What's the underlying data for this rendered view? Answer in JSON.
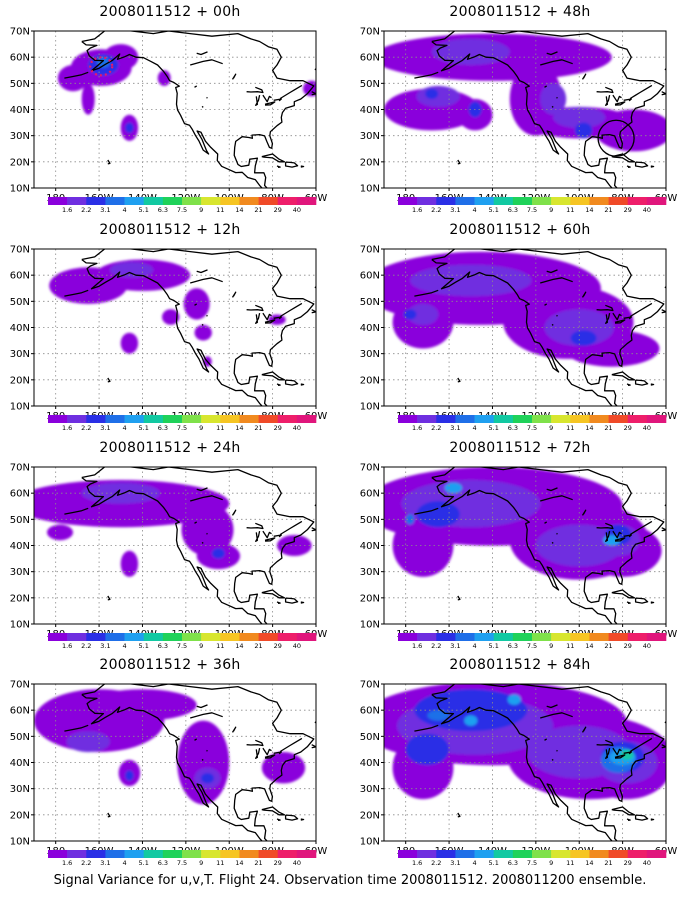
{
  "panels": [
    {
      "title": "2008011512 + 00h",
      "blobs": [
        {
          "lon": -159,
          "lat": 56,
          "rx": 14,
          "ry": 7,
          "l": 1
        },
        {
          "lon": -172,
          "lat": 52,
          "rx": 7,
          "ry": 5,
          "l": 1
        },
        {
          "lon": -150,
          "lat": 60,
          "rx": 8,
          "ry": 5,
          "l": 1
        },
        {
          "lon": -158,
          "lat": 57,
          "rx": 7,
          "ry": 4,
          "l": 3
        },
        {
          "lon": -158,
          "lat": 58,
          "rx": 3,
          "ry": 2,
          "l": 4
        },
        {
          "lon": -165,
          "lat": 44,
          "rx": 3,
          "ry": 6,
          "l": 1
        },
        {
          "lon": -146,
          "lat": 33,
          "rx": 4,
          "ry": 5,
          "l": 1
        },
        {
          "lon": -146,
          "lat": 33,
          "rx": 2,
          "ry": 2,
          "l": 3
        },
        {
          "lon": -130,
          "lat": 52,
          "rx": 3,
          "ry": 3,
          "l": 1
        },
        {
          "lon": -62,
          "lat": 48,
          "rx": 4,
          "ry": 3,
          "l": 1
        }
      ]
    },
    {
      "title": "2008011512 + 48h",
      "blobs": [
        {
          "lon": -140,
          "lat": 60,
          "rx": 55,
          "ry": 9,
          "l": 1
        },
        {
          "lon": -168,
          "lat": 40,
          "rx": 22,
          "ry": 8,
          "l": 1
        },
        {
          "lon": -148,
          "lat": 38,
          "rx": 8,
          "ry": 6,
          "l": 1
        },
        {
          "lon": -120,
          "lat": 44,
          "rx": 12,
          "ry": 14,
          "l": 1
        },
        {
          "lon": -100,
          "lat": 35,
          "rx": 25,
          "ry": 6,
          "l": 1
        },
        {
          "lon": -75,
          "lat": 32,
          "rx": 18,
          "ry": 8,
          "l": 1
        },
        {
          "lon": -150,
          "lat": 62,
          "rx": 18,
          "ry": 5,
          "l": 2
        },
        {
          "lon": -165,
          "lat": 45,
          "rx": 10,
          "ry": 4,
          "l": 2
        },
        {
          "lon": -112,
          "lat": 44,
          "rx": 6,
          "ry": 6,
          "l": 2
        },
        {
          "lon": -100,
          "lat": 37,
          "rx": 12,
          "ry": 4,
          "l": 2
        },
        {
          "lon": -148,
          "lat": 40,
          "rx": 3,
          "ry": 3,
          "l": 3
        },
        {
          "lon": -98,
          "lat": 32,
          "rx": 4,
          "ry": 3,
          "l": 3
        },
        {
          "lon": -168,
          "lat": 46,
          "rx": 3,
          "ry": 2,
          "l": 3
        }
      ]
    },
    {
      "title": "2008011512 + 12h",
      "blobs": [
        {
          "lon": -165,
          "lat": 56,
          "rx": 18,
          "ry": 7,
          "l": 1
        },
        {
          "lon": -140,
          "lat": 60,
          "rx": 22,
          "ry": 6,
          "l": 1
        },
        {
          "lon": -115,
          "lat": 49,
          "rx": 6,
          "ry": 6,
          "l": 1
        },
        {
          "lon": -127,
          "lat": 44,
          "rx": 4,
          "ry": 3,
          "l": 1
        },
        {
          "lon": -146,
          "lat": 34,
          "rx": 4,
          "ry": 4,
          "l": 1
        },
        {
          "lon": -110,
          "lat": 27,
          "rx": 2,
          "ry": 2,
          "l": 1
        },
        {
          "lon": -145,
          "lat": 62,
          "rx": 10,
          "ry": 3,
          "l": 2
        },
        {
          "lon": -78,
          "lat": 43,
          "rx": 4,
          "ry": 2,
          "l": 1
        },
        {
          "lon": -112,
          "lat": 38,
          "rx": 4,
          "ry": 3,
          "l": 1
        }
      ]
    },
    {
      "title": "2008011512 + 60h",
      "blobs": [
        {
          "lon": -145,
          "lat": 55,
          "rx": 55,
          "ry": 14,
          "l": 1
        },
        {
          "lon": -172,
          "lat": 42,
          "rx": 14,
          "ry": 10,
          "l": 1
        },
        {
          "lon": -105,
          "lat": 42,
          "rx": 30,
          "ry": 14,
          "l": 1
        },
        {
          "lon": -85,
          "lat": 32,
          "rx": 22,
          "ry": 7,
          "l": 1
        },
        {
          "lon": -150,
          "lat": 58,
          "rx": 28,
          "ry": 6,
          "l": 2
        },
        {
          "lon": -172,
          "lat": 45,
          "rx": 7,
          "ry": 4,
          "l": 2
        },
        {
          "lon": -100,
          "lat": 40,
          "rx": 16,
          "ry": 7,
          "l": 2
        },
        {
          "lon": -98,
          "lat": 36,
          "rx": 6,
          "ry": 3,
          "l": 3
        },
        {
          "lon": -178,
          "lat": 45,
          "rx": 3,
          "ry": 2,
          "l": 3
        }
      ]
    },
    {
      "title": "2008011512 + 24h",
      "blobs": [
        {
          "lon": -150,
          "lat": 56,
          "rx": 50,
          "ry": 9,
          "l": 1
        },
        {
          "lon": -110,
          "lat": 46,
          "rx": 12,
          "ry": 10,
          "l": 1
        },
        {
          "lon": -146,
          "lat": 33,
          "rx": 4,
          "ry": 5,
          "l": 1
        },
        {
          "lon": -105,
          "lat": 36,
          "rx": 10,
          "ry": 5,
          "l": 1
        },
        {
          "lon": -70,
          "lat": 40,
          "rx": 8,
          "ry": 4,
          "l": 1
        },
        {
          "lon": -150,
          "lat": 60,
          "rx": 18,
          "ry": 4,
          "l": 2
        },
        {
          "lon": -105,
          "lat": 37,
          "rx": 3,
          "ry": 2,
          "l": 3
        },
        {
          "lon": -178,
          "lat": 45,
          "rx": 6,
          "ry": 3,
          "l": 1
        }
      ]
    },
    {
      "title": "2008011512 + 72h",
      "blobs": [
        {
          "lon": -140,
          "lat": 55,
          "rx": 60,
          "ry": 15,
          "l": 1
        },
        {
          "lon": -172,
          "lat": 40,
          "rx": 14,
          "ry": 12,
          "l": 1
        },
        {
          "lon": -100,
          "lat": 42,
          "rx": 32,
          "ry": 15,
          "l": 1
        },
        {
          "lon": -80,
          "lat": 38,
          "rx": 18,
          "ry": 10,
          "l": 1
        },
        {
          "lon": -150,
          "lat": 56,
          "rx": 32,
          "ry": 9,
          "l": 2
        },
        {
          "lon": -100,
          "lat": 40,
          "rx": 20,
          "ry": 8,
          "l": 2
        },
        {
          "lon": -82,
          "lat": 42,
          "rx": 10,
          "ry": 6,
          "l": 2
        },
        {
          "lon": -165,
          "lat": 52,
          "rx": 10,
          "ry": 5,
          "l": 3
        },
        {
          "lon": -82,
          "lat": 44,
          "rx": 6,
          "ry": 4,
          "l": 3
        },
        {
          "lon": -85,
          "lat": 42,
          "rx": 4,
          "ry": 2,
          "l": 5
        },
        {
          "lon": -158,
          "lat": 62,
          "rx": 4,
          "ry": 2,
          "l": 5
        },
        {
          "lon": -178,
          "lat": 50,
          "rx": 2,
          "ry": 2,
          "l": 4
        }
      ]
    },
    {
      "title": "2008011512 + 36h",
      "blobs": [
        {
          "lon": -160,
          "lat": 56,
          "rx": 30,
          "ry": 12,
          "l": 1
        },
        {
          "lon": -140,
          "lat": 62,
          "rx": 25,
          "ry": 6,
          "l": 1
        },
        {
          "lon": -112,
          "lat": 40,
          "rx": 12,
          "ry": 16,
          "l": 1
        },
        {
          "lon": -146,
          "lat": 36,
          "rx": 5,
          "ry": 5,
          "l": 1
        },
        {
          "lon": -75,
          "lat": 38,
          "rx": 10,
          "ry": 6,
          "l": 1
        },
        {
          "lon": -165,
          "lat": 48,
          "rx": 10,
          "ry": 4,
          "l": 2
        },
        {
          "lon": -110,
          "lat": 34,
          "rx": 6,
          "ry": 4,
          "l": 2
        },
        {
          "lon": -110,
          "lat": 34,
          "rx": 3,
          "ry": 2,
          "l": 3
        },
        {
          "lon": -146,
          "lat": 35,
          "rx": 2,
          "ry": 2,
          "l": 3
        }
      ]
    },
    {
      "title": "2008011512 + 84h",
      "blobs": [
        {
          "lon": -140,
          "lat": 55,
          "rx": 62,
          "ry": 16,
          "l": 1
        },
        {
          "lon": -172,
          "lat": 38,
          "rx": 14,
          "ry": 12,
          "l": 1
        },
        {
          "lon": -95,
          "lat": 42,
          "rx": 38,
          "ry": 16,
          "l": 1
        },
        {
          "lon": -78,
          "lat": 38,
          "rx": 20,
          "ry": 12,
          "l": 1
        },
        {
          "lon": -148,
          "lat": 54,
          "rx": 36,
          "ry": 11,
          "l": 2
        },
        {
          "lon": -100,
          "lat": 44,
          "rx": 24,
          "ry": 10,
          "l": 2
        },
        {
          "lon": -78,
          "lat": 40,
          "rx": 14,
          "ry": 8,
          "l": 2
        },
        {
          "lon": -150,
          "lat": 60,
          "rx": 26,
          "ry": 8,
          "l": 3
        },
        {
          "lon": -170,
          "lat": 45,
          "rx": 10,
          "ry": 6,
          "l": 3
        },
        {
          "lon": -80,
          "lat": 42,
          "rx": 10,
          "ry": 6,
          "l": 3
        },
        {
          "lon": -82,
          "lat": 41,
          "rx": 8,
          "ry": 5,
          "l": 4
        },
        {
          "lon": -80,
          "lat": 42,
          "rx": 6,
          "ry": 3,
          "l": 5
        },
        {
          "lon": -78,
          "lat": 43,
          "rx": 3,
          "ry": 2,
          "l": 6
        },
        {
          "lon": -130,
          "lat": 64,
          "rx": 3,
          "ry": 2,
          "l": 5
        },
        {
          "lon": -165,
          "lat": 58,
          "rx": 5,
          "ry": 2,
          "l": 4
        },
        {
          "lon": -150,
          "lat": 56,
          "rx": 3,
          "ry": 2,
          "l": 5
        }
      ]
    }
  ],
  "lon_labels": [
    "180",
    "160W",
    "140W",
    "120W",
    "100W",
    "80W",
    "60W"
  ],
  "lat_labels": [
    "70N",
    "60N",
    "50N",
    "40N",
    "30N",
    "20N",
    "10N"
  ],
  "colorbar": {
    "labels": [
      "1.6",
      "2.2",
      "3.1",
      "4",
      "5.1",
      "6.3",
      "7.5",
      "9",
      "11",
      "14",
      "21",
      "29",
      "40"
    ],
    "colors": [
      "#8a00dc",
      "#6f2fe0",
      "#2a2fe6",
      "#1f6fe8",
      "#1fa0f0",
      "#12c9a2",
      "#1fd25a",
      "#7fe14a",
      "#d8e62f",
      "#f6c523",
      "#f18a1f",
      "#f04a28",
      "#ee1e6a",
      "#e0167c"
    ]
  },
  "caption": "Signal Variance for u,v,T. Flight 24. Observation time 2008011512. 2008011200 ensemble."
}
